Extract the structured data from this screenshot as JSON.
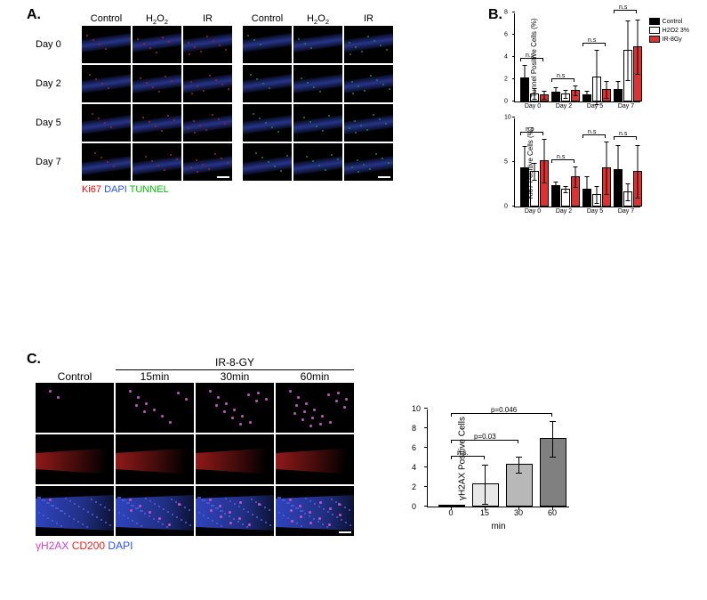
{
  "panelA": {
    "label": "A.",
    "row_labels": [
      "Day  0",
      "Day 2",
      "Day 5",
      "Day 7"
    ],
    "col_labels_left": [
      "Control",
      "H₂O₂",
      "IR"
    ],
    "col_labels_right": [
      "Control",
      "H₂O₂",
      "IR"
    ],
    "legend_left": [
      {
        "text": "Ki67",
        "color": "#ff0000"
      },
      {
        "text": "DAPI",
        "color": "#2952ff"
      },
      {
        "text": "TUNNEL",
        "color": "#00c000"
      }
    ],
    "micro_colors": {
      "dapi_band": "#2a3a9a",
      "ki67_signal": "#b02020",
      "tunnel_signal": "#1a8a3a",
      "bg": "#000000"
    }
  },
  "panelB": {
    "label": "B.",
    "legend": [
      {
        "label": "Control",
        "fill": "#000000"
      },
      {
        "label": "H2O2 3%",
        "fill": "#ffffff"
      },
      {
        "label": "IR-8Gy",
        "fill": "#e03030"
      }
    ],
    "chart1": {
      "ylabel": "Tunnel Positive Cells (%)",
      "ymax": 8,
      "yticks": [
        0,
        2,
        4,
        6,
        8
      ],
      "groups": [
        "Day 0",
        "Day 2",
        "Day 5",
        "Day 7"
      ],
      "data": [
        [
          2.0,
          0.6,
          0.5
        ],
        [
          0.7,
          0.6,
          0.9
        ],
        [
          0.5,
          2.1,
          1.0
        ],
        [
          1.0,
          4.5,
          4.8
        ]
      ],
      "errors": [
        [
          1.2,
          0.5,
          0.4
        ],
        [
          0.5,
          0.4,
          0.5
        ],
        [
          0.4,
          2.5,
          0.8
        ],
        [
          0.8,
          2.7,
          2.5
        ]
      ],
      "sig": [
        "n.s",
        "n.s",
        "n.s",
        "n.s"
      ]
    },
    "chart2": {
      "ylabel": "Ki67 Positive Cells (%)",
      "ymax": 10,
      "yticks": [
        0,
        5,
        10
      ],
      "groups": [
        "Day 0",
        "Day 2",
        "Day 5",
        "Day 7"
      ],
      "data": [
        [
          4.2,
          3.8,
          5.0
        ],
        [
          2.2,
          1.8,
          3.2
        ],
        [
          1.8,
          1.2,
          4.2
        ],
        [
          4.0,
          1.5,
          3.8
        ]
      ],
      "errors": [
        [
          2.5,
          1.0,
          2.5
        ],
        [
          0.5,
          0.4,
          1.2
        ],
        [
          1.5,
          1.0,
          3.0
        ],
        [
          2.8,
          1.0,
          3.0
        ]
      ],
      "sig": [
        "n.s",
        "n.s",
        "n.s",
        "n.s"
      ]
    }
  },
  "panelC": {
    "label": "C.",
    "span_label": "IR-8-GY",
    "col_labels": [
      "Control",
      "15min",
      "30min",
      "60min"
    ],
    "legend": [
      {
        "text": "γH2AX",
        "color": "#d040d0"
      },
      {
        "text": "CD200",
        "color": "#ff2020"
      },
      {
        "text": "DAPI",
        "color": "#2952ff"
      }
    ],
    "micro_colors": {
      "yh2ax": "#c050c0",
      "cd200": "#b82020",
      "dapi": "#3045c0",
      "bg": "#000000"
    },
    "chart": {
      "ylabel": "γH2AX Positive Cells",
      "xlabel": "min",
      "ymax": 10,
      "yticks": [
        0,
        2,
        4,
        6,
        8,
        10
      ],
      "xticks": [
        "0",
        "15",
        "30",
        "60"
      ],
      "bars": [
        {
          "x": "0",
          "value": 0,
          "err": 0,
          "fill": "#ffffff"
        },
        {
          "x": "15",
          "value": 2.2,
          "err": 2.0,
          "fill": "#e8e8e8"
        },
        {
          "x": "30",
          "value": 4.2,
          "err": 0.8,
          "fill": "#b8b8b8"
        },
        {
          "x": "60",
          "value": 6.8,
          "err": 1.8,
          "fill": "#808080"
        }
      ],
      "sig": [
        {
          "label": "n.s.",
          "from": 0,
          "to": 1,
          "y": 4.8
        },
        {
          "label": "p=0.03",
          "from": 0,
          "to": 2,
          "y": 6.5
        },
        {
          "label": "p=0.046",
          "from": 0,
          "to": 3,
          "y": 9.2
        }
      ]
    }
  }
}
